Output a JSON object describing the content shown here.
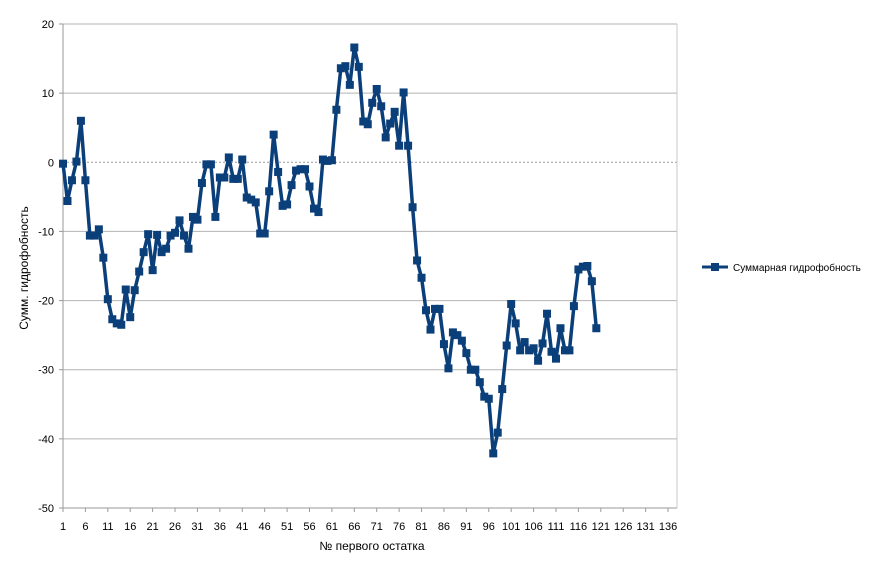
{
  "chart_data": {
    "type": "line",
    "xlabel": "№ первого остатка",
    "ylabel": "Сумм. гидрофобность",
    "ylim": [
      -50,
      20
    ],
    "xlim": [
      1,
      138
    ],
    "y_ticks": [
      20,
      10,
      0,
      -10,
      -20,
      -30,
      -40,
      -50
    ],
    "x_ticks": [
      1,
      6,
      11,
      16,
      21,
      26,
      31,
      36,
      41,
      46,
      51,
      56,
      61,
      66,
      71,
      76,
      81,
      86,
      91,
      96,
      101,
      106,
      111,
      116,
      121,
      126,
      131,
      136
    ],
    "grid": true,
    "legend_position": "right",
    "series_color": "#0b3f7a",
    "series": [
      {
        "name": "Суммарная гидрофобность",
        "x": [
          1,
          2,
          3,
          4,
          5,
          6,
          7,
          8,
          9,
          10,
          11,
          12,
          13,
          14,
          15,
          16,
          17,
          18,
          19,
          20,
          21,
          22,
          23,
          24,
          25,
          26,
          27,
          28,
          29,
          30,
          31,
          32,
          33,
          34,
          35,
          36,
          37,
          38,
          39,
          40,
          41,
          42,
          43,
          44,
          45,
          46,
          47,
          48,
          49,
          50,
          51,
          52,
          53,
          54,
          55,
          56,
          57,
          58,
          59,
          60,
          61,
          62,
          63,
          64,
          65,
          66,
          67,
          68,
          69,
          70,
          71,
          72,
          73,
          74,
          75,
          76,
          77,
          78,
          79,
          80,
          81,
          82,
          83,
          84,
          85,
          86,
          87,
          88,
          89,
          90,
          91,
          92,
          93,
          94,
          95,
          96,
          97,
          98,
          99,
          100,
          101,
          102,
          103,
          104,
          105,
          106,
          107,
          108,
          109,
          110,
          111,
          112,
          113,
          114,
          115,
          116,
          117,
          118,
          119,
          120
        ],
        "values": [
          -0.2,
          -5.6,
          -2.6,
          0.1,
          6.0,
          -2.6,
          -10.6,
          -10.6,
          -9.7,
          -13.8,
          -19.8,
          -22.7,
          -23.3,
          -23.5,
          -18.4,
          -22.4,
          -18.5,
          -15.8,
          -13.0,
          -10.4,
          -15.6,
          -10.5,
          -13.0,
          -12.5,
          -10.6,
          -10.2,
          -8.4,
          -10.6,
          -12.5,
          -7.9,
          -8.3,
          -3.0,
          -0.3,
          -0.3,
          -7.9,
          -2.2,
          -2.2,
          0.7,
          -2.4,
          -2.4,
          0.4,
          -5.1,
          -5.4,
          -5.8,
          -10.3,
          -10.3,
          -4.2,
          4.0,
          -1.4,
          -6.3,
          -6.1,
          -3.3,
          -1.2,
          -1.0,
          -1.0,
          -3.5,
          -6.7,
          -7.2,
          0.4,
          0.2,
          0.3,
          7.6,
          13.6,
          13.9,
          11.2,
          16.6,
          13.8,
          5.9,
          5.5,
          8.6,
          10.6,
          8.1,
          3.6,
          5.6,
          7.3,
          2.4,
          10.1,
          2.4,
          -6.5,
          -14.2,
          -16.7,
          -21.4,
          -24.2,
          -21.2,
          -21.2,
          -26.3,
          -29.8,
          -24.6,
          -25.0,
          -25.8,
          -27.6,
          -30.0,
          -30.0,
          -31.8,
          -33.9,
          -34.2,
          -42.1,
          -39.1,
          -32.8,
          -26.5,
          -20.5,
          -23.3,
          -27.2,
          -26.0,
          -27.2,
          -26.9,
          -28.7,
          -26.2,
          -21.9,
          -27.4,
          -28.4,
          -24.0,
          -27.2,
          -27.2,
          -20.8,
          -15.5,
          -15.1,
          -15.0,
          -17.2,
          -24.0
        ]
      }
    ]
  }
}
